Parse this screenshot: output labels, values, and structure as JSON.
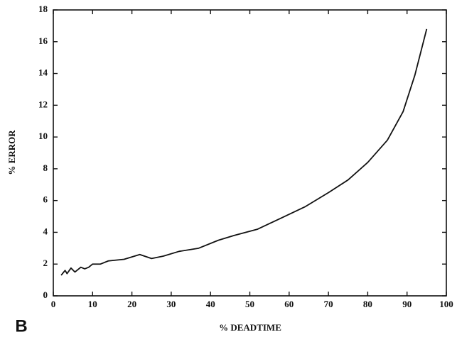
{
  "chart_data": {
    "type": "line",
    "panel_label": "B",
    "x_label": "% DEADTIME",
    "y_label": "% ERROR",
    "x": [
      2,
      3,
      3.5,
      4.5,
      5.5,
      7,
      8,
      9,
      10,
      12,
      14,
      18,
      20,
      22,
      25,
      28,
      32,
      37,
      42,
      46,
      52,
      58,
      64,
      70,
      75,
      80,
      85,
      89,
      92,
      95
    ],
    "values": [
      1.3,
      1.6,
      1.4,
      1.75,
      1.5,
      1.8,
      1.7,
      1.8,
      2.0,
      2.0,
      2.2,
      2.3,
      2.45,
      2.6,
      2.35,
      2.5,
      2.8,
      3.0,
      3.5,
      3.8,
      4.2,
      4.9,
      5.6,
      6.5,
      7.3,
      8.4,
      9.8,
      11.6,
      13.9,
      16.8
    ],
    "color": "#111111",
    "xlim": [
      0,
      100
    ],
    "xticks": [
      0,
      10,
      20,
      30,
      40,
      50,
      60,
      70,
      80,
      90,
      100
    ],
    "ylim": [
      0,
      18
    ],
    "yticks": [
      0,
      2,
      4,
      6,
      8,
      10,
      12,
      14,
      16,
      18
    ],
    "grid": false
  }
}
